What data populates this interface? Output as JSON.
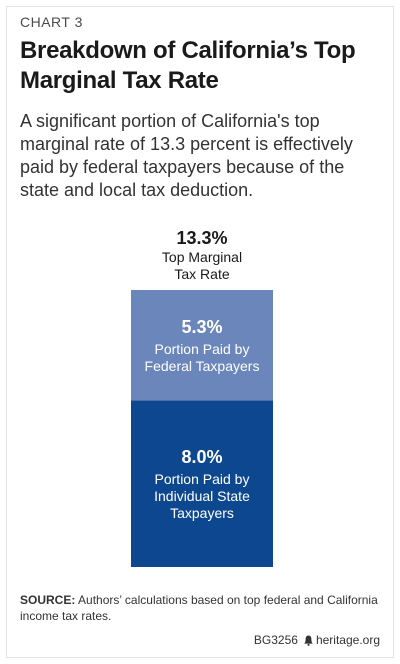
{
  "header": {
    "eyebrow": "CHART 3",
    "title": "Breakdown of California’s Top Marginal Tax Rate",
    "subtitle": "A significant portion of California's top marginal rate of 13.3 percent is effectively paid by federal taxpayers because of the state and local tax deduction."
  },
  "chart_data": {
    "type": "bar",
    "stacked": true,
    "title": "",
    "total": {
      "value": 13.3,
      "value_label": "13.3%",
      "label_lines": [
        "Top Marginal",
        "Tax Rate"
      ]
    },
    "series": [
      {
        "value": 8.0,
        "value_label": "8.0%",
        "label_lines": [
          "Portion Paid by",
          "Individual State",
          "Taxpayers"
        ],
        "color": "#0d4790"
      },
      {
        "value": 5.3,
        "value_label": "5.3%",
        "label_lines": [
          "Portion Paid by",
          "Federal Taxpayers"
        ],
        "color": "#6a86bb"
      }
    ]
  },
  "footer": {
    "source_label": "SOURCE:",
    "source_text": " Authors’ calculations based on top federal and California income tax rates.",
    "code": "BG3256",
    "site": "heritage.org"
  }
}
